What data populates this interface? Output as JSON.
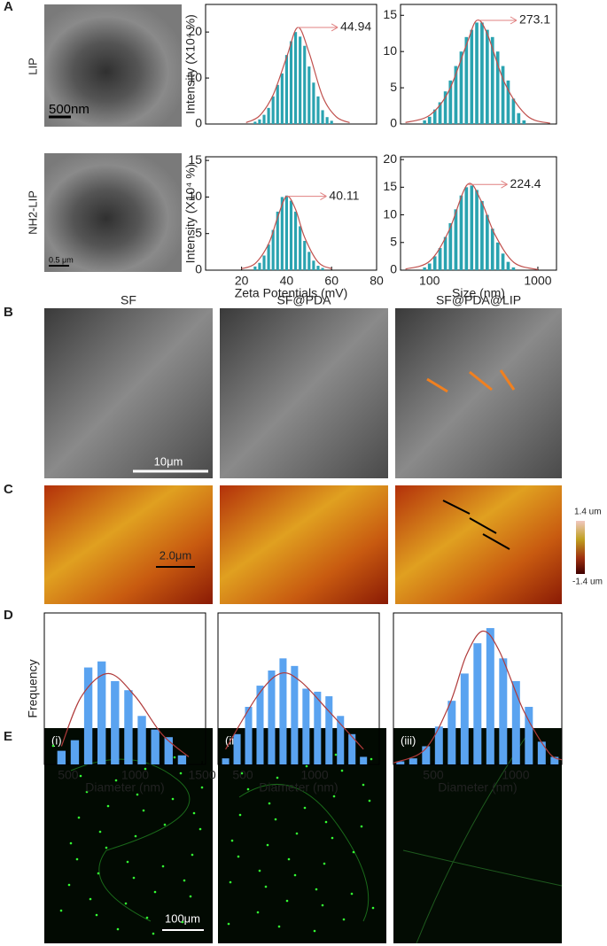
{
  "panel_labels": [
    "A",
    "B",
    "C",
    "D",
    "E"
  ],
  "panel_a": {
    "row_labels": [
      "LIP",
      "NH2-LIP"
    ],
    "scale_bars": [
      "500nm",
      "0.5 μm"
    ]
  },
  "panel_b": {
    "titles": [
      "SF",
      "SF@PDA",
      "SF@PDA@LIP"
    ],
    "scale_bar": "10μm"
  },
  "panel_c": {
    "scale_bar": "2.0μm",
    "colorbar": [
      "1.4 um",
      "-1.4 um"
    ]
  },
  "panel_e": {
    "labels": [
      "(i)",
      "(ii)",
      "(iii)"
    ],
    "scale_bar": "100μm"
  },
  "chart_data": [
    {
      "type": "bar",
      "ylabel": "Intensity (X10⁴ %)",
      "annotation": "44.94",
      "color": "#2aa3b0",
      "fit_color": "#c0504d",
      "xlim": [
        4,
        80
      ],
      "ylim": [
        0,
        26
      ],
      "yticks": [
        0,
        10,
        20
      ],
      "x": [
        26,
        28,
        30,
        32,
        34,
        36,
        38,
        40,
        42,
        44,
        46,
        48,
        50,
        52,
        54,
        56,
        58,
        60
      ],
      "values": [
        0.5,
        1,
        2,
        3.5,
        6,
        8.5,
        11,
        15,
        18,
        20,
        19,
        17,
        12.5,
        9,
        6,
        3,
        1.5,
        0.7
      ],
      "fit_x": [
        22,
        28,
        34,
        40,
        45,
        50,
        56,
        62,
        68
      ],
      "fit_values": [
        0.3,
        1.8,
        6.3,
        14.5,
        21,
        15.5,
        6,
        1.6,
        0.3
      ]
    },
    {
      "type": "bar",
      "annotation": "273.1",
      "color": "#2aa3b0",
      "fit_color": "#c0504d",
      "xscale": "log",
      "xlim": [
        54,
        1486
      ],
      "ylim": [
        0,
        16.5
      ],
      "yticks": [
        0,
        5,
        10,
        15
      ],
      "x": [
        90,
        100,
        112,
        125,
        140,
        156,
        175,
        196,
        219,
        245,
        273,
        305,
        341,
        381,
        426,
        476,
        532,
        595,
        665,
        745
      ],
      "values": [
        0.5,
        1,
        2,
        3,
        4.5,
        6,
        8,
        10,
        12,
        13,
        14,
        14,
        13,
        12,
        10,
        8,
        6,
        3.5,
        1.5,
        0.5
      ],
      "fit_x": [
        60,
        100,
        150,
        220,
        273,
        340,
        500,
        800,
        1300
      ],
      "fit_values": [
        0.2,
        1.2,
        4.5,
        11,
        14.3,
        12.5,
        5.5,
        1.1,
        0.1
      ]
    },
    {
      "type": "bar",
      "ylabel": "Intensity (X10⁴ %)",
      "xlabel": "Zeta Potentials (mV)",
      "annotation": "40.11",
      "color": "#2aa3b0",
      "fit_color": "#c0504d",
      "xlim": [
        4,
        80
      ],
      "ylim": [
        0,
        15.5
      ],
      "yticks": [
        0,
        5,
        10,
        15
      ],
      "xticks": [
        20,
        40,
        60,
        80
      ],
      "x": [
        26,
        28,
        30,
        32,
        34,
        36,
        38,
        40,
        42,
        44,
        46,
        48,
        50,
        52,
        54,
        56
      ],
      "values": [
        0.5,
        1,
        2,
        3.5,
        5.5,
        8,
        10,
        10.2,
        9.5,
        8,
        6,
        4,
        2.5,
        1.3,
        0.6,
        0.3
      ],
      "fit_x": [
        20,
        26,
        32,
        36,
        40,
        44,
        48,
        54,
        60
      ],
      "fit_values": [
        0.2,
        0.9,
        3.6,
        7.2,
        10.1,
        8.3,
        4.5,
        1.1,
        0.2
      ]
    },
    {
      "type": "bar",
      "xlabel": "Size (nm)",
      "annotation": "224.4",
      "color": "#2aa3b0",
      "fit_color": "#c0504d",
      "xscale": "log",
      "xlim": [
        54,
        1486
      ],
      "ylim": [
        0,
        20.5
      ],
      "yticks": [
        0,
        5,
        10,
        15,
        20
      ],
      "xticks": [
        100,
        1000
      ],
      "x": [
        90,
        100,
        112,
        125,
        140,
        156,
        175,
        196,
        219,
        245,
        273,
        305,
        341,
        381,
        426,
        476,
        532,
        595
      ],
      "values": [
        0.5,
        1.2,
        2.5,
        4,
        6,
        8.5,
        11,
        13.5,
        15,
        15.3,
        14.5,
        12.5,
        10,
        7.5,
        5,
        3,
        1.5,
        0.5
      ],
      "fit_x": [
        60,
        100,
        150,
        224,
        300,
        400,
        600,
        1000
      ],
      "fit_values": [
        0.2,
        1.6,
        7,
        15.5,
        12.5,
        6.5,
        1.4,
        0.1
      ]
    },
    {
      "type": "bar",
      "ylabel": "Frequency",
      "xlabel": "Diameter (nm)",
      "color": "#5aa3f0",
      "fit_color": "#b03a3a",
      "xlim": [
        322,
        1526
      ],
      "ylim": [
        0,
        100
      ],
      "xticks": [
        500,
        1000,
        1500
      ],
      "x": [
        450,
        550,
        650,
        750,
        850,
        950,
        1050,
        1150,
        1250,
        1350
      ],
      "values": [
        9,
        16,
        64,
        68,
        55,
        49,
        32,
        23,
        18,
        6
      ],
      "fit_x": [
        450,
        600,
        800,
        1000,
        1200,
        1400
      ],
      "fit_values": [
        12,
        45,
        60,
        45,
        20,
        5
      ]
    },
    {
      "type": "bar",
      "xlabel": "Diameter (nm)",
      "color": "#5aa3f0",
      "fit_color": "#b03a3a",
      "xlim": [
        327,
        1450
      ],
      "ylim": [
        0,
        100
      ],
      "xticks": [
        500,
        1000
      ],
      "x": [
        380,
        460,
        540,
        620,
        700,
        780,
        860,
        940,
        1020,
        1100,
        1180,
        1260,
        1340
      ],
      "values": [
        4,
        20,
        38,
        52,
        62,
        70,
        65,
        50,
        48,
        45,
        32,
        20,
        5
      ],
      "fit_x": [
        380,
        600,
        760,
        900,
        1100,
        1340
      ],
      "fit_values": [
        10,
        45,
        60,
        55,
        35,
        10
      ]
    },
    {
      "type": "bar",
      "xlabel": "Diameter (nm)",
      "color": "#5aa3f0",
      "fit_color": "#b03a3a",
      "xlim": [
        258,
        1280
      ],
      "ylim": [
        0,
        100
      ],
      "xticks": [
        500,
        1000
      ],
      "x": [
        300,
        378,
        456,
        534,
        612,
        690,
        768,
        846,
        924,
        1002,
        1080,
        1158,
        1236
      ],
      "values": [
        2,
        4,
        12,
        25,
        42,
        60,
        80,
        90,
        70,
        55,
        38,
        15,
        5
      ],
      "fit_x": [
        260,
        450,
        600,
        700,
        800,
        900,
        1050,
        1200,
        1280
      ],
      "fit_values": [
        1,
        10,
        40,
        72,
        88,
        75,
        35,
        8,
        3
      ]
    }
  ]
}
